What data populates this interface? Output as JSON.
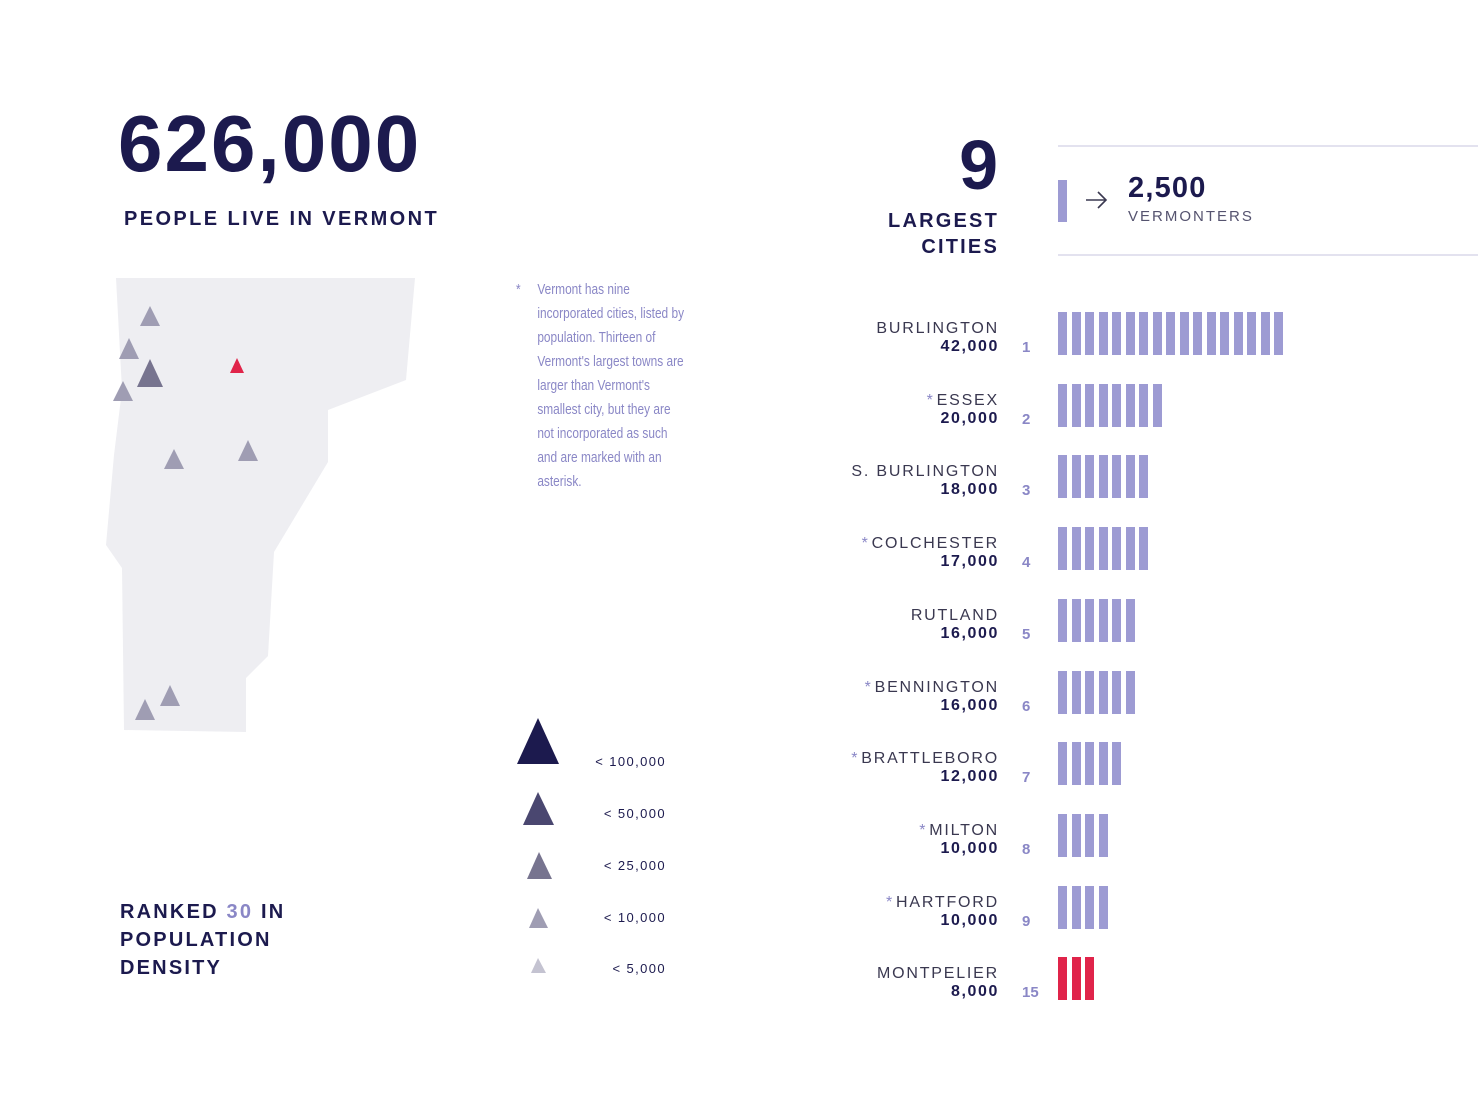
{
  "headline": {
    "value": "626,000",
    "caption": "PEOPLE LIVE IN VERMONT"
  },
  "note": {
    "asterisk": "*",
    "text": "Vermont has nine incorporated cities, listed by population. Thirteen of Vermont's largest towns are larger than Vermont's smallest city, but they are not incorporated as such and are marked with an asterisk."
  },
  "legend": {
    "items": [
      {
        "label": "< 100,000",
        "color": "#1c1a4e"
      },
      {
        "label": "< 50,000",
        "color": "#4a4770"
      },
      {
        "label": "< 25,000",
        "color": "#77748f"
      },
      {
        "label": "< 10,000",
        "color": "#9f9db3"
      },
      {
        "label": "< 5,000",
        "color": "#c4c3d1"
      }
    ]
  },
  "rank": {
    "prefix": "RANKED",
    "number": "30",
    "suffix": "IN",
    "line2": "POPULATION",
    "line3": "DENSITY"
  },
  "cities_header": {
    "count": "9",
    "line1": "LARGEST",
    "line2": "CITIES"
  },
  "key": {
    "value": "2,500",
    "unit": "VERMONTERS",
    "icon": "right-arrow-icon"
  },
  "colors": {
    "navy": "#1c1a4e",
    "bar": "#9d9bd3",
    "highlight": "#e0244a",
    "map": "#eeeef2"
  },
  "chart_data": {
    "type": "bar",
    "unit_value": 2500,
    "categories": [
      "BURLINGTON",
      "ESSEX",
      "S. BURLINGTON",
      "COLCHESTER",
      "RUTLAND",
      "BENNINGTON",
      "BRATTLEBORO",
      "MILTON",
      "HARTFORD",
      "MONTPELIER"
    ],
    "rows": [
      {
        "name": "BURLINGTON",
        "asterisk": false,
        "population": "42,000",
        "rank": "1",
        "value": 42000,
        "units": 17,
        "highlight": false
      },
      {
        "name": "ESSEX",
        "asterisk": true,
        "population": "20,000",
        "rank": "2",
        "value": 20000,
        "units": 8,
        "highlight": false
      },
      {
        "name": "S. BURLINGTON",
        "asterisk": false,
        "population": "18,000",
        "rank": "3",
        "value": 18000,
        "units": 7,
        "highlight": false
      },
      {
        "name": "COLCHESTER",
        "asterisk": true,
        "population": "17,000",
        "rank": "4",
        "value": 17000,
        "units": 7,
        "highlight": false
      },
      {
        "name": "RUTLAND",
        "asterisk": false,
        "population": "16,000",
        "rank": "5",
        "value": 16000,
        "units": 6,
        "highlight": false
      },
      {
        "name": "BENNINGTON",
        "asterisk": true,
        "population": "16,000",
        "rank": "6",
        "value": 16000,
        "units": 6,
        "highlight": false
      },
      {
        "name": "BRATTLEBORO",
        "asterisk": true,
        "population": "12,000",
        "rank": "7",
        "value": 12000,
        "units": 5,
        "highlight": false
      },
      {
        "name": "MILTON",
        "asterisk": true,
        "population": "10,000",
        "rank": "8",
        "value": 10000,
        "units": 4,
        "highlight": false
      },
      {
        "name": "HARTFORD",
        "asterisk": true,
        "population": "10,000",
        "rank": "9",
        "value": 10000,
        "units": 4,
        "highlight": false
      },
      {
        "name": "MONTPELIER",
        "asterisk": false,
        "population": "8,000",
        "rank": "15",
        "value": 8000,
        "units": 3,
        "highlight": true
      }
    ]
  }
}
